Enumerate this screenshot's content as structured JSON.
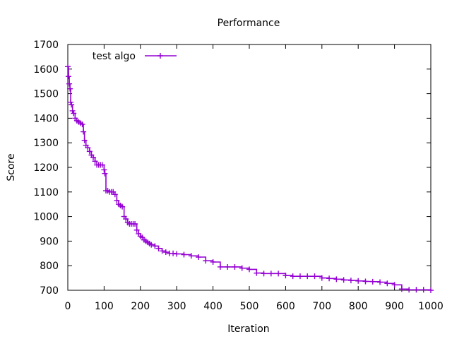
{
  "chart_data": {
    "type": "line",
    "title": "Performance",
    "xlabel": "Iteration",
    "ylabel": "Score",
    "xlim": [
      0,
      1000
    ],
    "ylim": [
      700,
      1700
    ],
    "xticks": [
      0,
      100,
      200,
      300,
      400,
      500,
      600,
      700,
      800,
      900,
      1000
    ],
    "yticks": [
      700,
      800,
      900,
      1000,
      1100,
      1200,
      1300,
      1400,
      1500,
      1600,
      1700
    ],
    "legend_position": "top-left",
    "grid": false,
    "series": [
      {
        "name": "test algo",
        "color": "#9400d3",
        "marker": "plus",
        "x": [
          0,
          2,
          4,
          6,
          8,
          10,
          13,
          16,
          20,
          25,
          30,
          35,
          40,
          43,
          46,
          50,
          55,
          60,
          65,
          70,
          75,
          80,
          85,
          90,
          95,
          100,
          102,
          105,
          110,
          115,
          120,
          125,
          130,
          135,
          140,
          145,
          150,
          155,
          160,
          165,
          170,
          175,
          180,
          185,
          190,
          195,
          200,
          205,
          210,
          215,
          220,
          225,
          230,
          240,
          250,
          260,
          270,
          280,
          290,
          300,
          320,
          340,
          360,
          380,
          400,
          420,
          440,
          460,
          480,
          500,
          520,
          540,
          560,
          580,
          600,
          620,
          640,
          660,
          680,
          700,
          720,
          740,
          760,
          780,
          800,
          820,
          840,
          860,
          880,
          900,
          920,
          940,
          960,
          980,
          1000
        ],
        "y": [
          1610,
          1570,
          1540,
          1520,
          1465,
          1455,
          1430,
          1420,
          1400,
          1390,
          1385,
          1380,
          1375,
          1345,
          1310,
          1290,
          1280,
          1265,
          1250,
          1240,
          1225,
          1210,
          1210,
          1210,
          1210,
          1190,
          1175,
          1105,
          1105,
          1100,
          1100,
          1100,
          1090,
          1065,
          1050,
          1045,
          1040,
          1000,
          990,
          975,
          970,
          970,
          970,
          970,
          945,
          930,
          920,
          915,
          905,
          900,
          895,
          890,
          885,
          880,
          870,
          860,
          855,
          850,
          850,
          848,
          845,
          840,
          835,
          820,
          815,
          795,
          795,
          795,
          790,
          785,
          770,
          768,
          768,
          768,
          760,
          757,
          757,
          757,
          757,
          750,
          748,
          745,
          742,
          740,
          738,
          736,
          735,
          733,
          728,
          722,
          705,
          702,
          702,
          702,
          700
        ]
      }
    ]
  }
}
